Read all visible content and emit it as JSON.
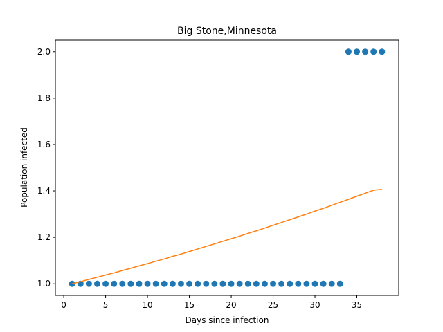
{
  "chart_data": {
    "type": "scatter",
    "title": "Big Stone,Minnesota",
    "xlabel": "Days since infection",
    "ylabel": "Population infected",
    "xlim": [
      -1,
      40
    ],
    "ylim": [
      0.95,
      2.05
    ],
    "xticks": [
      0,
      5,
      10,
      15,
      20,
      25,
      30,
      35
    ],
    "yticks": [
      1.0,
      1.2,
      1.4,
      1.6,
      1.8,
      2.0
    ],
    "grid": false,
    "legend": "none",
    "colors": {
      "points": "#1f77b4",
      "fit": "#ff7f0e"
    },
    "series": [
      {
        "type": "scatter",
        "x": [
          1,
          2,
          3,
          4,
          5,
          6,
          7,
          8,
          9,
          10,
          11,
          12,
          13,
          14,
          15,
          16,
          17,
          18,
          19,
          20,
          21,
          22,
          23,
          24,
          25,
          26,
          27,
          28,
          29,
          30,
          31,
          32,
          33,
          34,
          35,
          36,
          37,
          38
        ],
        "y": [
          1,
          1,
          1,
          1,
          1,
          1,
          1,
          1,
          1,
          1,
          1,
          1,
          1,
          1,
          1,
          1,
          1,
          1,
          1,
          1,
          1,
          1,
          1,
          1,
          1,
          1,
          1,
          1,
          1,
          1,
          1,
          1,
          1,
          2,
          2,
          2,
          2,
          2
        ]
      },
      {
        "type": "line",
        "x": [
          1,
          2,
          3,
          4,
          5,
          6,
          7,
          8,
          9,
          10,
          11,
          12,
          13,
          14,
          15,
          16,
          17,
          18,
          19,
          20,
          21,
          22,
          23,
          24,
          25,
          26,
          27,
          28,
          29,
          30,
          31,
          32,
          33,
          34,
          35,
          36,
          37,
          38
        ],
        "y": [
          1.0,
          1.009,
          1.019,
          1.028,
          1.038,
          1.047,
          1.057,
          1.067,
          1.077,
          1.087,
          1.097,
          1.107,
          1.118,
          1.128,
          1.139,
          1.15,
          1.161,
          1.172,
          1.183,
          1.194,
          1.205,
          1.217,
          1.228,
          1.24,
          1.252,
          1.264,
          1.276,
          1.288,
          1.3,
          1.313,
          1.325,
          1.338,
          1.351,
          1.364,
          1.377,
          1.39,
          1.403,
          1.407
        ]
      }
    ]
  }
}
